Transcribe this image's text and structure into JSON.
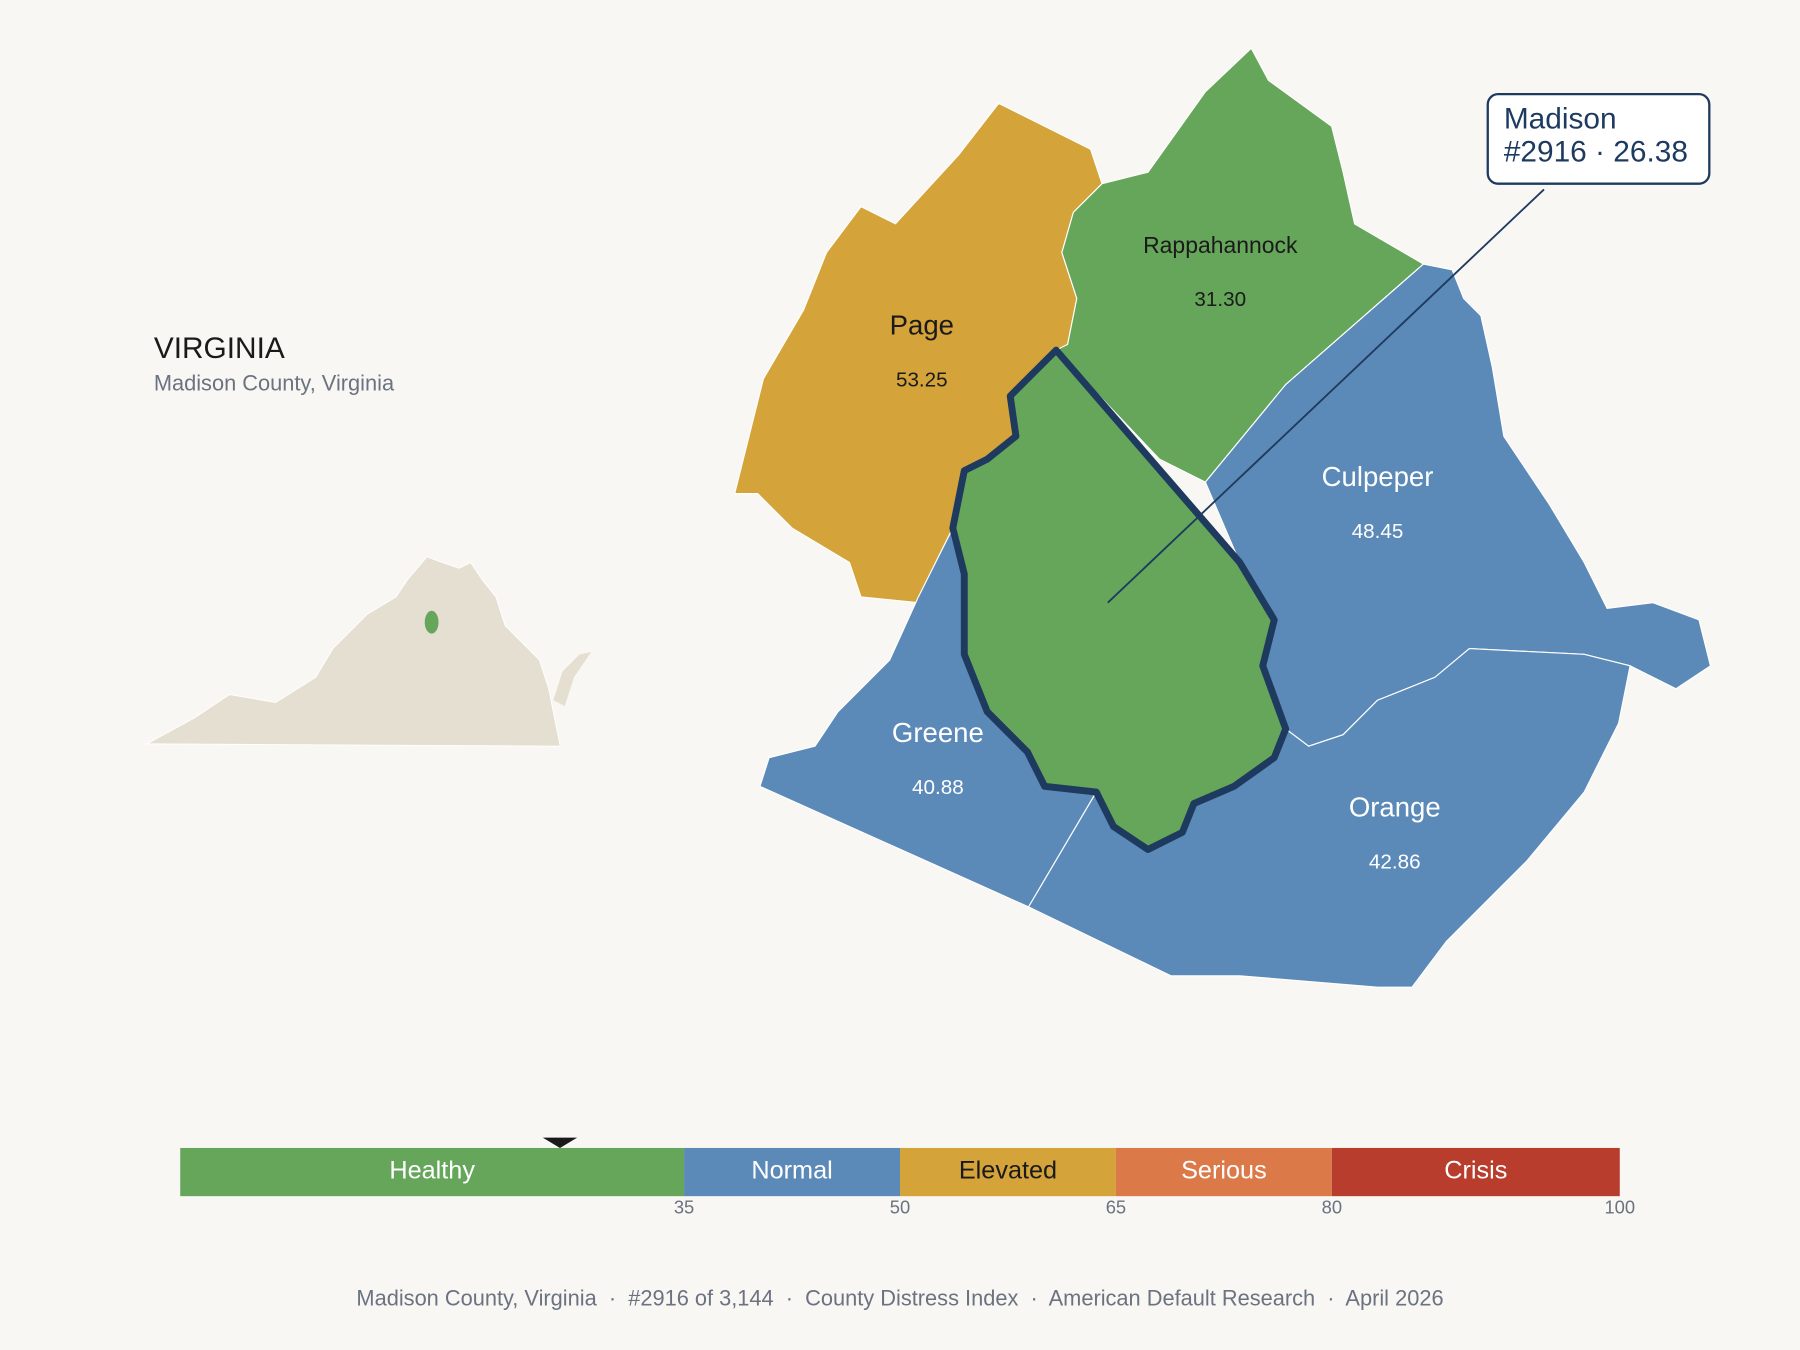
{
  "header": {
    "title": "VIRGINIA",
    "subtitle": "Madison County, Virginia"
  },
  "counties": [
    {
      "name": "Page",
      "value": "53.25",
      "color": "#D4A33A"
    },
    {
      "name": "Rappahannock",
      "value": "31.30",
      "color": "#66A65A"
    },
    {
      "name": "Culpeper",
      "value": "48.45",
      "color": "#5B8AB8"
    },
    {
      "name": "Greene",
      "value": "40.88",
      "color": "#5B8AB8"
    },
    {
      "name": "Orange",
      "value": "42.86",
      "color": "#5B8AB8"
    }
  ],
  "focus": {
    "color": "#66A65A",
    "callout": [
      "Madison",
      "#2916 · 26.38"
    ]
  },
  "scale": {
    "xlim": [
      0,
      100
    ],
    "marker": 26.38,
    "ticks": [
      35,
      50,
      65,
      80,
      100
    ],
    "segments": [
      {
        "label": "Healthy",
        "color": "#66A65A"
      },
      {
        "label": "Normal",
        "color": "#5B8AB8"
      },
      {
        "label": "Elevated",
        "color": "#D4A33A"
      },
      {
        "label": "Serious",
        "color": "#DB7A48"
      },
      {
        "label": "Crisis",
        "color": "#B83D2C"
      }
    ]
  },
  "footer": "Madison County, Virginia  ·  #2916 of 3,144  ·  County Distress Index  ·  American Default Research  ·  April 2026"
}
